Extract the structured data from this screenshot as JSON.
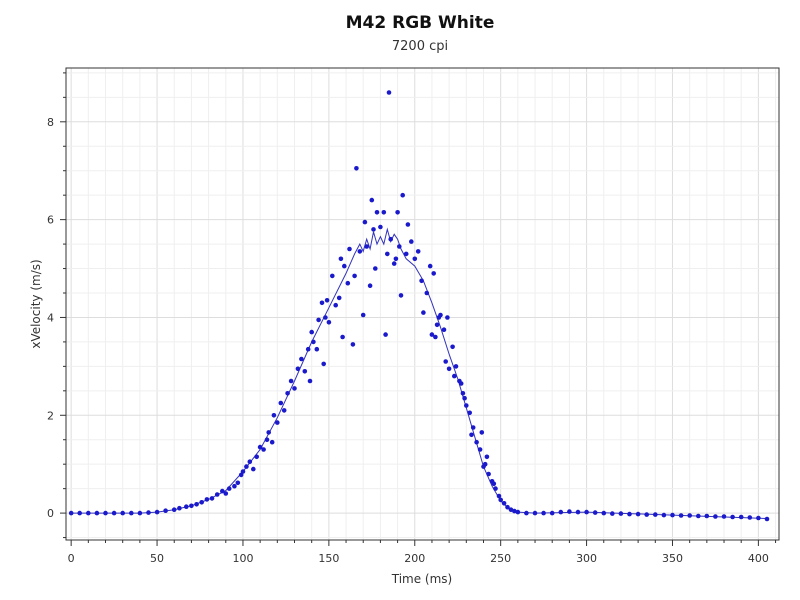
{
  "chart_data": {
    "type": "scatter",
    "title": "M42 RGB White",
    "subtitle": "7200 cpi",
    "xlabel": "Time (ms)",
    "ylabel": "xVelocity (m/s)",
    "xlim": [
      -3,
      412
    ],
    "ylim": [
      -0.55,
      9.1
    ],
    "xticks": [
      0,
      50,
      100,
      150,
      200,
      250,
      300,
      350,
      400
    ],
    "yticks": [
      0,
      2,
      4,
      6,
      8
    ],
    "grid": true,
    "colors": {
      "points": "#1a1acc",
      "line": "#3333bb",
      "grid": "#e6e6e6",
      "frame": "#333333"
    },
    "series": [
      {
        "type": "scatter",
        "points": [
          [
            0,
            0
          ],
          [
            5,
            0
          ],
          [
            10,
            0
          ],
          [
            15,
            0
          ],
          [
            20,
            0
          ],
          [
            25,
            0
          ],
          [
            30,
            0
          ],
          [
            35,
            0
          ],
          [
            40,
            0
          ],
          [
            45,
            0.01
          ],
          [
            50,
            0.02
          ],
          [
            55,
            0.05
          ],
          [
            60,
            0.07
          ],
          [
            63,
            0.1
          ],
          [
            67,
            0.13
          ],
          [
            70,
            0.15
          ],
          [
            73,
            0.18
          ],
          [
            76,
            0.22
          ],
          [
            79,
            0.28
          ],
          [
            82,
            0.3
          ],
          [
            85,
            0.38
          ],
          [
            88,
            0.45
          ],
          [
            90,
            0.4
          ],
          [
            92,
            0.5
          ],
          [
            95,
            0.55
          ],
          [
            97,
            0.62
          ],
          [
            99,
            0.78
          ],
          [
            100,
            0.85
          ],
          [
            102,
            0.95
          ],
          [
            104,
            1.05
          ],
          [
            106,
            0.9
          ],
          [
            108,
            1.15
          ],
          [
            110,
            1.35
          ],
          [
            112,
            1.3
          ],
          [
            114,
            1.5
          ],
          [
            115,
            1.65
          ],
          [
            117,
            1.45
          ],
          [
            118,
            2.0
          ],
          [
            120,
            1.85
          ],
          [
            122,
            2.25
          ],
          [
            124,
            2.1
          ],
          [
            126,
            2.45
          ],
          [
            128,
            2.7
          ],
          [
            130,
            2.55
          ],
          [
            132,
            2.95
          ],
          [
            134,
            3.15
          ],
          [
            136,
            2.9
          ],
          [
            138,
            3.35
          ],
          [
            139,
            2.7
          ],
          [
            140,
            3.7
          ],
          [
            141,
            3.5
          ],
          [
            143,
            3.35
          ],
          [
            144,
            3.95
          ],
          [
            146,
            4.3
          ],
          [
            147,
            3.05
          ],
          [
            148,
            4.0
          ],
          [
            149,
            4.35
          ],
          [
            150,
            3.9
          ],
          [
            152,
            4.85
          ],
          [
            154,
            4.25
          ],
          [
            156,
            4.4
          ],
          [
            157,
            5.2
          ],
          [
            158,
            3.6
          ],
          [
            159,
            5.05
          ],
          [
            161,
            4.7
          ],
          [
            162,
            5.4
          ],
          [
            164,
            3.45
          ],
          [
            165,
            4.85
          ],
          [
            166,
            7.05
          ],
          [
            168,
            5.35
          ],
          [
            170,
            4.05
          ],
          [
            171,
            5.95
          ],
          [
            172,
            5.45
          ],
          [
            174,
            4.65
          ],
          [
            175,
            6.4
          ],
          [
            176,
            5.8
          ],
          [
            177,
            5.0
          ],
          [
            178,
            6.15
          ],
          [
            180,
            5.85
          ],
          [
            182,
            6.15
          ],
          [
            183,
            3.65
          ],
          [
            184,
            5.3
          ],
          [
            185,
            8.6
          ],
          [
            186,
            5.6
          ],
          [
            188,
            5.1
          ],
          [
            189,
            5.2
          ],
          [
            190,
            6.15
          ],
          [
            191,
            5.45
          ],
          [
            192,
            4.45
          ],
          [
            193,
            6.5
          ],
          [
            195,
            5.3
          ],
          [
            196,
            5.9
          ],
          [
            198,
            5.55
          ],
          [
            200,
            5.2
          ],
          [
            202,
            5.35
          ],
          [
            204,
            4.75
          ],
          [
            205,
            4.1
          ],
          [
            207,
            4.5
          ],
          [
            209,
            5.05
          ],
          [
            210,
            3.65
          ],
          [
            211,
            4.9
          ],
          [
            212,
            3.6
          ],
          [
            213,
            3.85
          ],
          [
            214,
            4.0
          ],
          [
            215,
            4.05
          ],
          [
            217,
            3.75
          ],
          [
            218,
            3.1
          ],
          [
            219,
            4.0
          ],
          [
            220,
            2.95
          ],
          [
            222,
            3.4
          ],
          [
            223,
            2.8
          ],
          [
            224,
            3.0
          ],
          [
            226,
            2.7
          ],
          [
            227,
            2.65
          ],
          [
            228,
            2.45
          ],
          [
            229,
            2.35
          ],
          [
            230,
            2.2
          ],
          [
            232,
            2.05
          ],
          [
            233,
            1.6
          ],
          [
            234,
            1.75
          ],
          [
            236,
            1.45
          ],
          [
            238,
            1.3
          ],
          [
            239,
            1.65
          ],
          [
            240,
            0.95
          ],
          [
            241,
            1.0
          ],
          [
            242,
            1.15
          ],
          [
            243,
            0.8
          ],
          [
            245,
            0.65
          ],
          [
            246,
            0.6
          ],
          [
            247,
            0.5
          ],
          [
            249,
            0.35
          ],
          [
            250,
            0.27
          ],
          [
            252,
            0.2
          ],
          [
            254,
            0.12
          ],
          [
            256,
            0.07
          ],
          [
            258,
            0.04
          ],
          [
            260,
            0.02
          ],
          [
            265,
            0.0
          ],
          [
            270,
            0.0
          ],
          [
            275,
            0.0
          ],
          [
            280,
            0.0
          ],
          [
            285,
            0.02
          ],
          [
            290,
            0.03
          ],
          [
            295,
            0.02
          ],
          [
            300,
            0.02
          ],
          [
            305,
            0.01
          ],
          [
            310,
            0.0
          ],
          [
            315,
            -0.01
          ],
          [
            320,
            -0.01
          ],
          [
            325,
            -0.02
          ],
          [
            330,
            -0.02
          ],
          [
            335,
            -0.03
          ],
          [
            340,
            -0.03
          ],
          [
            345,
            -0.04
          ],
          [
            350,
            -0.04
          ],
          [
            355,
            -0.05
          ],
          [
            360,
            -0.05
          ],
          [
            365,
            -0.06
          ],
          [
            370,
            -0.06
          ],
          [
            375,
            -0.07
          ],
          [
            380,
            -0.07
          ],
          [
            385,
            -0.08
          ],
          [
            390,
            -0.08
          ],
          [
            395,
            -0.09
          ],
          [
            400,
            -0.1
          ],
          [
            405,
            -0.12
          ]
        ]
      },
      {
        "type": "line",
        "points": [
          [
            0,
            0
          ],
          [
            40,
            0
          ],
          [
            50,
            0.02
          ],
          [
            60,
            0.07
          ],
          [
            70,
            0.15
          ],
          [
            80,
            0.28
          ],
          [
            90,
            0.46
          ],
          [
            100,
            0.85
          ],
          [
            110,
            1.3
          ],
          [
            120,
            1.95
          ],
          [
            130,
            2.7
          ],
          [
            140,
            3.5
          ],
          [
            150,
            4.2
          ],
          [
            160,
            4.9
          ],
          [
            165,
            5.3
          ],
          [
            168,
            5.5
          ],
          [
            170,
            5.35
          ],
          [
            172,
            5.6
          ],
          [
            174,
            5.4
          ],
          [
            176,
            5.75
          ],
          [
            178,
            5.5
          ],
          [
            180,
            5.65
          ],
          [
            182,
            5.5
          ],
          [
            184,
            5.8
          ],
          [
            186,
            5.55
          ],
          [
            188,
            5.7
          ],
          [
            190,
            5.6
          ],
          [
            192,
            5.4
          ],
          [
            195,
            5.2
          ],
          [
            200,
            5.05
          ],
          [
            205,
            4.75
          ],
          [
            210,
            4.3
          ],
          [
            215,
            3.8
          ],
          [
            220,
            3.25
          ],
          [
            225,
            2.75
          ],
          [
            230,
            2.15
          ],
          [
            235,
            1.55
          ],
          [
            240,
            0.95
          ],
          [
            245,
            0.55
          ],
          [
            250,
            0.25
          ],
          [
            255,
            0.08
          ],
          [
            260,
            0.02
          ],
          [
            270,
            0
          ],
          [
            300,
            0.02
          ],
          [
            350,
            -0.04
          ],
          [
            405,
            -0.11
          ]
        ]
      }
    ]
  }
}
